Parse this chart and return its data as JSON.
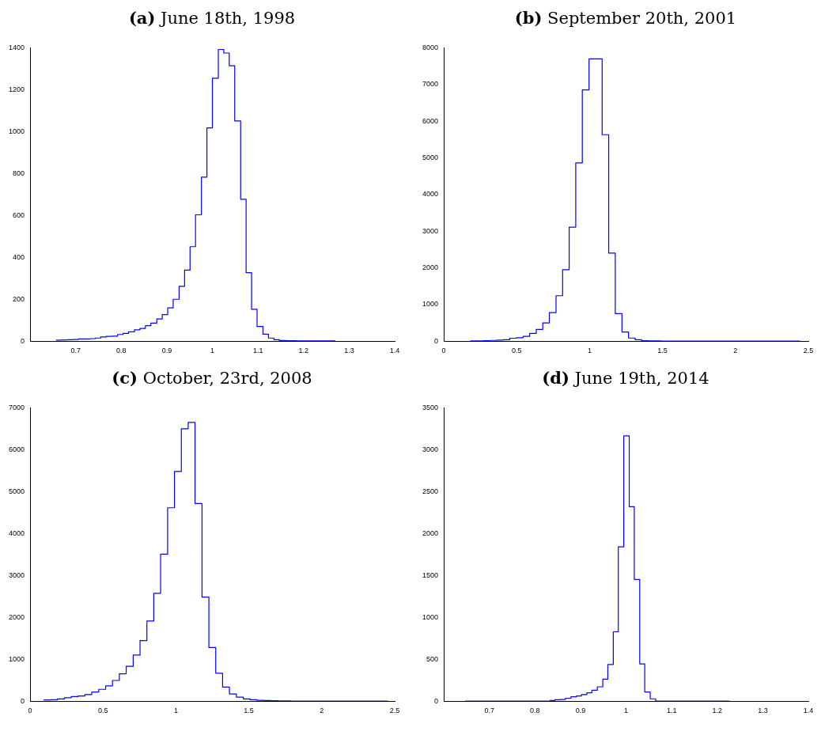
{
  "chart_data": [
    {
      "type": "histogram",
      "title": "(a) June 18th, 1998",
      "color": "#0000ff",
      "grid": false,
      "xlim": [
        0.6,
        1.4
      ],
      "xticks": [
        0.7,
        0.8,
        0.9,
        1,
        1.1,
        1.2,
        1.3,
        1.4
      ],
      "ylim": [
        0,
        1400
      ],
      "yticks": [
        0,
        200,
        400,
        600,
        800,
        1000,
        1200,
        1400
      ],
      "bins": [
        0.657,
        0.669,
        0.682,
        0.694,
        0.706,
        0.718,
        0.731,
        0.743,
        0.755,
        0.767,
        0.78,
        0.792,
        0.804,
        0.816,
        0.829,
        0.841,
        0.853,
        0.865,
        0.878,
        0.89,
        0.902,
        0.914,
        0.927,
        0.939,
        0.951,
        0.963,
        0.976,
        0.988,
        1.0,
        1.013,
        1.025,
        1.037,
        1.049,
        1.062,
        1.074,
        1.086,
        1.098,
        1.111,
        1.123,
        1.135,
        1.147,
        1.16,
        1.172,
        1.184,
        1.196,
        1.209,
        1.221,
        1.233,
        1.245,
        1.258,
        1.27
      ],
      "values": [
        5,
        6,
        7,
        8,
        11,
        11,
        12,
        15,
        20,
        23,
        24,
        32,
        37,
        45,
        54,
        61,
        74,
        86,
        106,
        127,
        159,
        200,
        262,
        339,
        451,
        603,
        783,
        1018,
        1255,
        1392,
        1375,
        1314,
        1051,
        677,
        327,
        152,
        70,
        33,
        15,
        7,
        3,
        2,
        2,
        1,
        1,
        1,
        1,
        1,
        1,
        1
      ]
    },
    {
      "type": "histogram",
      "title": "(b) September 20th, 2001",
      "color": "#0000ff",
      "grid": false,
      "xlim": [
        0,
        2.5
      ],
      "xticks": [
        0,
        0.5,
        1,
        1.5,
        2,
        2.5
      ],
      "ylim": [
        0,
        8000
      ],
      "yticks": [
        0,
        1000,
        2000,
        3000,
        4000,
        5000,
        6000,
        7000,
        8000
      ],
      "bins": [
        0.182,
        0.227,
        0.272,
        0.318,
        0.363,
        0.408,
        0.453,
        0.498,
        0.544,
        0.589,
        0.634,
        0.679,
        0.724,
        0.77,
        0.815,
        0.86,
        0.905,
        0.95,
        0.996,
        1.041,
        1.086,
        1.131,
        1.176,
        1.222,
        1.267,
        1.312,
        1.357,
        1.402,
        1.448,
        1.493,
        1.538,
        1.583,
        1.628,
        1.674,
        1.719,
        1.764,
        1.809,
        1.854,
        1.9,
        1.945,
        1.99,
        2.035,
        2.08,
        2.126,
        2.171,
        2.216,
        2.261,
        2.306,
        2.352,
        2.397,
        2.442
      ],
      "values": [
        10,
        10,
        15,
        20,
        30,
        40,
        80,
        95,
        130,
        210,
        320,
        500,
        780,
        1240,
        1950,
        3110,
        4860,
        6850,
        7700,
        7700,
        5630,
        2400,
        750,
        250,
        85,
        40,
        15,
        10,
        5,
        2,
        2,
        2,
        2,
        2,
        2,
        2,
        2,
        2,
        2,
        2,
        2,
        2,
        2,
        2,
        2,
        2,
        2,
        2,
        2,
        2
      ]
    },
    {
      "type": "histogram",
      "title": "(c) October, 23rd, 2008",
      "color": "#0000ff",
      "grid": false,
      "xlim": [
        0,
        2.5
      ],
      "xticks": [
        0,
        0.5,
        1,
        1.5,
        2,
        2.5
      ],
      "ylim": [
        0,
        7000
      ],
      "yticks": [
        0,
        1000,
        2000,
        3000,
        4000,
        5000,
        6000,
        7000
      ],
      "bins": [
        0.093,
        0.14,
        0.187,
        0.235,
        0.282,
        0.329,
        0.376,
        0.423,
        0.471,
        0.518,
        0.565,
        0.612,
        0.659,
        0.707,
        0.754,
        0.801,
        0.848,
        0.895,
        0.943,
        0.99,
        1.037,
        1.084,
        1.131,
        1.179,
        1.226,
        1.273,
        1.32,
        1.367,
        1.415,
        1.462,
        1.509,
        1.556,
        1.603,
        1.651,
        1.698,
        1.745,
        1.792,
        1.839,
        1.887,
        1.934,
        1.981,
        2.028,
        2.075,
        2.123,
        2.17,
        2.217,
        2.264,
        2.311,
        2.359,
        2.406,
        2.453
      ],
      "values": [
        28,
        34,
        55,
        83,
        110,
        124,
        158,
        220,
        282,
        365,
        495,
        653,
        832,
        1100,
        1444,
        1912,
        2572,
        3507,
        4615,
        5481,
        6499,
        6650,
        4718,
        2483,
        1279,
        667,
        337,
        172,
        96,
        55,
        34,
        20,
        15,
        10,
        8,
        5,
        4,
        3,
        2,
        2,
        2,
        2,
        2,
        2,
        2,
        1,
        1,
        1,
        1,
        1
      ]
    },
    {
      "type": "histogram",
      "title": "(d) June 19th, 2014",
      "color": "#0000ff",
      "grid": false,
      "xlim": [
        0.6,
        1.4
      ],
      "xticks": [
        0.7,
        0.8,
        0.9,
        1,
        1.1,
        1.2,
        1.3,
        1.4
      ],
      "ylim": [
        0,
        3500
      ],
      "yticks": [
        0,
        500,
        1000,
        1500,
        2000,
        2500,
        3000,
        3500
      ],
      "bins": [
        0.647,
        0.659,
        0.67,
        0.682,
        0.693,
        0.705,
        0.717,
        0.728,
        0.74,
        0.751,
        0.763,
        0.775,
        0.786,
        0.798,
        0.809,
        0.821,
        0.833,
        0.844,
        0.856,
        0.867,
        0.879,
        0.891,
        0.902,
        0.914,
        0.925,
        0.937,
        0.949,
        0.96,
        0.972,
        0.983,
        0.995,
        1.007,
        1.018,
        1.03,
        1.041,
        1.053,
        1.065,
        1.076,
        1.088,
        1.099,
        1.111,
        1.123,
        1.134,
        1.146,
        1.157,
        1.169,
        1.181,
        1.192,
        1.204,
        1.215,
        1.227
      ],
      "values": [
        2,
        2,
        2,
        2,
        2,
        2,
        2,
        2,
        2,
        2,
        2,
        2,
        2,
        2,
        2,
        2,
        7,
        17,
        20,
        35,
        52,
        62,
        79,
        100,
        131,
        172,
        262,
        438,
        828,
        1841,
        3166,
        2321,
        1452,
        445,
        110,
        28,
        2,
        2,
        2,
        2,
        2,
        2,
        2,
        2,
        2,
        2,
        2,
        2,
        2,
        2
      ]
    }
  ]
}
